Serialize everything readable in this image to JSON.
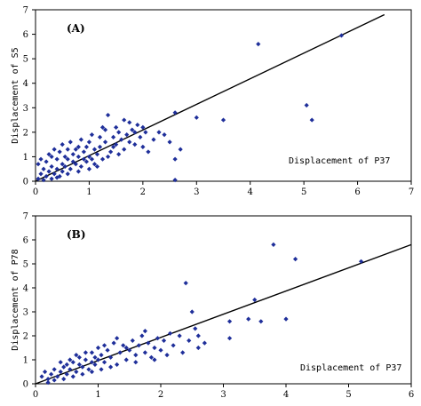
{
  "chart_data": [
    {
      "type": "scatter",
      "panel_label": "(A)",
      "xlabel": "Displacement of P37",
      "ylabel": "Displacement of S5",
      "xlim": [
        0,
        7
      ],
      "ylim": [
        0,
        7
      ],
      "xticks": [
        "0",
        "1",
        "2",
        "3",
        "4",
        "5",
        "6",
        "7"
      ],
      "yticks": [
        "0",
        "1",
        "2",
        "3",
        "4",
        "5",
        "6",
        "7"
      ],
      "fit_line": {
        "x": [
          0,
          6.5
        ],
        "y": [
          0,
          6.8
        ]
      },
      "points": [
        [
          0.05,
          0.1
        ],
        [
          0.1,
          0.3
        ],
        [
          0.15,
          0.5
        ],
        [
          0.2,
          0.2
        ],
        [
          0.2,
          0.8
        ],
        [
          0.25,
          0.4
        ],
        [
          0.3,
          0.6
        ],
        [
          0.3,
          1.0
        ],
        [
          0.35,
          0.3
        ],
        [
          0.4,
          0.5
        ],
        [
          0.4,
          0.9
        ],
        [
          0.45,
          1.2
        ],
        [
          0.5,
          0.4
        ],
        [
          0.5,
          0.7
        ],
        [
          0.5,
          1.5
        ],
        [
          0.55,
          0.6
        ],
        [
          0.6,
          0.9
        ],
        [
          0.6,
          1.3
        ],
        [
          0.65,
          0.5
        ],
        [
          0.7,
          0.8
        ],
        [
          0.7,
          1.1
        ],
        [
          0.75,
          0.7
        ],
        [
          0.8,
          1.0
        ],
        [
          0.8,
          1.4
        ],
        [
          0.85,
          0.6
        ],
        [
          0.9,
          0.9
        ],
        [
          0.9,
          1.2
        ],
        [
          0.95,
          0.8
        ],
        [
          1.0,
          1.0
        ],
        [
          1.0,
          1.6
        ],
        [
          1.05,
          0.9
        ],
        [
          1.1,
          1.3
        ],
        [
          1.1,
          0.7
        ],
        [
          1.15,
          1.1
        ],
        [
          1.2,
          1.8
        ],
        [
          1.2,
          1.4
        ],
        [
          1.25,
          0.9
        ],
        [
          1.3,
          1.6
        ],
        [
          1.3,
          2.1
        ],
        [
          1.35,
          2.7
        ],
        [
          1.4,
          1.2
        ],
        [
          1.45,
          1.8
        ],
        [
          1.5,
          2.2
        ],
        [
          1.5,
          1.5
        ],
        [
          1.55,
          2.0
        ],
        [
          1.6,
          1.7
        ],
        [
          1.65,
          2.5
        ],
        [
          1.7,
          1.9
        ],
        [
          1.75,
          1.6
        ],
        [
          1.8,
          2.1
        ],
        [
          1.85,
          1.5
        ],
        [
          1.9,
          2.3
        ],
        [
          1.95,
          1.8
        ],
        [
          2.0,
          2.2
        ],
        [
          2.0,
          1.4
        ],
        [
          2.05,
          2.0
        ],
        [
          2.1,
          1.2
        ],
        [
          2.2,
          1.7
        ],
        [
          2.3,
          2.0
        ],
        [
          2.4,
          1.9
        ],
        [
          2.5,
          1.6
        ],
        [
          2.6,
          0.9
        ],
        [
          2.6,
          2.8
        ],
        [
          2.7,
          1.3
        ],
        [
          2.6,
          0.05
        ],
        [
          3.0,
          2.6
        ],
        [
          3.5,
          2.5
        ],
        [
          4.15,
          5.6
        ],
        [
          5.05,
          3.1
        ],
        [
          5.15,
          2.5
        ],
        [
          5.7,
          5.95
        ],
        [
          0.05,
          0.7
        ],
        [
          0.1,
          0.9
        ],
        [
          0.25,
          1.1
        ],
        [
          0.35,
          1.3
        ],
        [
          0.45,
          0.2
        ],
        [
          0.55,
          1.0
        ],
        [
          0.65,
          1.6
        ],
        [
          0.75,
          1.3
        ],
        [
          0.85,
          1.7
        ],
        [
          0.95,
          1.4
        ],
        [
          1.05,
          1.9
        ],
        [
          1.15,
          0.6
        ],
        [
          1.25,
          2.2
        ],
        [
          1.35,
          1.0
        ],
        [
          1.45,
          1.4
        ],
        [
          1.55,
          1.1
        ],
        [
          1.65,
          1.3
        ],
        [
          1.75,
          2.4
        ],
        [
          1.85,
          2.0
        ],
        [
          0.15,
          0.05
        ],
        [
          0.3,
          0.1
        ],
        [
          0.4,
          0.15
        ],
        [
          0.6,
          0.3
        ],
        [
          0.8,
          0.4
        ],
        [
          1.0,
          0.5
        ]
      ]
    },
    {
      "type": "scatter",
      "panel_label": "(B)",
      "xlabel": "Displacement of P37",
      "ylabel": "Displacement of P78",
      "xlim": [
        0,
        6
      ],
      "ylim": [
        0,
        7
      ],
      "xticks": [
        "0",
        "1",
        "2",
        "3",
        "4",
        "5",
        "6"
      ],
      "yticks": [
        "0",
        "1",
        "2",
        "3",
        "4",
        "5",
        "6",
        "7"
      ],
      "fit_line": {
        "x": [
          0,
          6
        ],
        "y": [
          0,
          5.8
        ]
      },
      "points": [
        [
          0.1,
          0.3
        ],
        [
          0.15,
          0.5
        ],
        [
          0.2,
          0.2
        ],
        [
          0.25,
          0.4
        ],
        [
          0.3,
          0.6
        ],
        [
          0.35,
          0.3
        ],
        [
          0.4,
          0.5
        ],
        [
          0.45,
          0.7
        ],
        [
          0.5,
          0.4
        ],
        [
          0.5,
          0.8
        ],
        [
          0.55,
          0.6
        ],
        [
          0.6,
          0.9
        ],
        [
          0.65,
          0.5
        ],
        [
          0.7,
          0.8
        ],
        [
          0.7,
          1.1
        ],
        [
          0.75,
          0.7
        ],
        [
          0.8,
          1.0
        ],
        [
          0.85,
          0.6
        ],
        [
          0.9,
          0.9
        ],
        [
          0.9,
          1.3
        ],
        [
          0.95,
          0.8
        ],
        [
          1.0,
          1.0
        ],
        [
          1.0,
          1.5
        ],
        [
          1.05,
          1.2
        ],
        [
          1.1,
          0.9
        ],
        [
          1.15,
          1.4
        ],
        [
          1.2,
          1.1
        ],
        [
          1.25,
          1.7
        ],
        [
          1.3,
          0.8
        ],
        [
          1.35,
          1.3
        ],
        [
          1.4,
          1.6
        ],
        [
          1.45,
          1.0
        ],
        [
          1.5,
          1.4
        ],
        [
          1.55,
          1.8
        ],
        [
          1.6,
          1.2
        ],
        [
          1.65,
          1.6
        ],
        [
          1.7,
          2.0
        ],
        [
          1.75,
          1.3
        ],
        [
          1.8,
          1.7
        ],
        [
          1.85,
          1.1
        ],
        [
          1.9,
          1.5
        ],
        [
          1.95,
          1.9
        ],
        [
          2.0,
          1.4
        ],
        [
          2.05,
          1.8
        ],
        [
          2.1,
          1.2
        ],
        [
          2.2,
          1.6
        ],
        [
          2.3,
          2.0
        ],
        [
          2.4,
          4.2
        ],
        [
          2.45,
          1.8
        ],
        [
          2.5,
          3.0
        ],
        [
          2.55,
          2.3
        ],
        [
          2.6,
          1.5
        ],
        [
          3.1,
          2.6
        ],
        [
          3.1,
          1.9
        ],
        [
          3.4,
          2.7
        ],
        [
          3.5,
          3.5
        ],
        [
          3.6,
          2.6
        ],
        [
          3.8,
          5.8
        ],
        [
          4.0,
          2.7
        ],
        [
          4.15,
          5.2
        ],
        [
          5.2,
          5.1
        ],
        [
          0.2,
          0.05
        ],
        [
          0.3,
          0.15
        ],
        [
          0.45,
          0.2
        ],
        [
          0.6,
          0.3
        ],
        [
          0.75,
          0.4
        ],
        [
          0.9,
          0.5
        ],
        [
          1.05,
          0.6
        ],
        [
          1.2,
          0.7
        ],
        [
          0.4,
          0.9
        ],
        [
          0.55,
          1.0
        ],
        [
          0.65,
          1.2
        ],
        [
          0.8,
          1.3
        ],
        [
          0.95,
          1.1
        ],
        [
          1.1,
          1.6
        ],
        [
          1.3,
          1.9
        ],
        [
          1.45,
          1.5
        ],
        [
          1.6,
          0.9
        ],
        [
          1.75,
          2.2
        ],
        [
          1.9,
          1.0
        ],
        [
          2.15,
          2.1
        ],
        [
          2.35,
          1.3
        ],
        [
          2.6,
          2.0
        ],
        [
          2.7,
          1.7
        ]
      ]
    }
  ]
}
